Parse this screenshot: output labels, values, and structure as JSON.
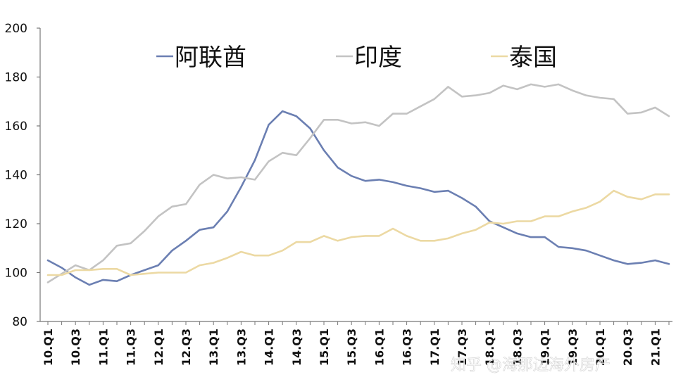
{
  "chart_data": {
    "type": "line",
    "title": "",
    "xlabel": "",
    "ylabel": "",
    "ylim": [
      80,
      200
    ],
    "yticks": [
      80,
      100,
      120,
      140,
      160,
      180,
      200
    ],
    "ytick_labels": [
      "80",
      "100",
      "120",
      "140",
      "160",
      "180",
      "200"
    ],
    "x": [
      "10.Q1",
      "10.Q2",
      "10.Q3",
      "10.Q4",
      "11.Q1",
      "11.Q2",
      "11.Q3",
      "11.Q4",
      "12.Q1",
      "12.Q2",
      "12.Q3",
      "12.Q4",
      "13.Q1",
      "13.Q2",
      "13.Q3",
      "13.Q4",
      "14.Q1",
      "14.Q2",
      "14.Q3",
      "14.Q4",
      "15.Q1",
      "15.Q2",
      "15.Q3",
      "15.Q4",
      "16.Q1",
      "16.Q2",
      "16.Q3",
      "16.Q4",
      "17.Q1",
      "17.Q2",
      "17.Q3",
      "17.Q4",
      "18.Q1",
      "18.Q2",
      "18.Q3",
      "18.Q4",
      "19.Q1",
      "19.Q2",
      "19.Q3",
      "19.Q4",
      "20.Q1",
      "20.Q2",
      "20.Q3",
      "20.Q4",
      "21.Q1",
      "21.Q2"
    ],
    "xtick_labels": [
      "10.Q1",
      "10.Q3",
      "11.Q1",
      "11.Q3",
      "12.Q1",
      "12.Q3",
      "13.Q1",
      "13.Q3",
      "14.Q1",
      "14.Q3",
      "15.Q1",
      "15.Q3",
      "16.Q1",
      "16.Q3",
      "17.Q1",
      "17.Q3",
      "18.Q1",
      "18.Q3",
      "19.Q1",
      "19.Q3",
      "20.Q1",
      "20.Q3",
      "21.Q1"
    ],
    "legend_position": "top",
    "grid": false,
    "series": [
      {
        "name": "阿联酋",
        "color": "#6b7fb2",
        "values": [
          105,
          102,
          98,
          95,
          97,
          96.5,
          99,
          101,
          103,
          109,
          113,
          117.5,
          118.5,
          125,
          135,
          146,
          160.5,
          166,
          164,
          159,
          150,
          143,
          139.5,
          137.5,
          138,
          137,
          135.5,
          134.5,
          133,
          133.5,
          130.5,
          127,
          121,
          118.5,
          116,
          114.5,
          114.5,
          110.5,
          110,
          109,
          107,
          105,
          103.5,
          104,
          105,
          103.5
        ]
      },
      {
        "name": "印度",
        "color": "#c3c3c3",
        "values": [
          96,
          99.5,
          103,
          101,
          105,
          111,
          112,
          117,
          123,
          127,
          128,
          136,
          140,
          138.5,
          139,
          138,
          145.5,
          149,
          148,
          155,
          162.5,
          162.5,
          161,
          161.5,
          160,
          165,
          165,
          168,
          171,
          176,
          172,
          172.5,
          173.5,
          176.5,
          175,
          177,
          176,
          177,
          174.5,
          172.5,
          171.5,
          171,
          165,
          165.5,
          167.5,
          164
        ]
      },
      {
        "name": "泰国",
        "color": "#ecd9a3",
        "values": [
          99,
          99,
          101,
          101,
          101.5,
          101.5,
          99,
          99.5,
          100,
          100,
          100,
          103,
          104,
          106,
          108.5,
          107,
          107,
          109,
          112.5,
          112.5,
          115,
          113,
          114.5,
          115,
          115,
          118,
          115,
          113,
          113,
          114,
          116,
          117.5,
          120.5,
          120,
          121,
          121,
          123,
          123,
          125,
          126.5,
          129,
          133.5,
          131,
          130,
          132,
          132
        ]
      }
    ]
  },
  "watermark": {
    "text": "知乎 @海那边海外房产"
  }
}
